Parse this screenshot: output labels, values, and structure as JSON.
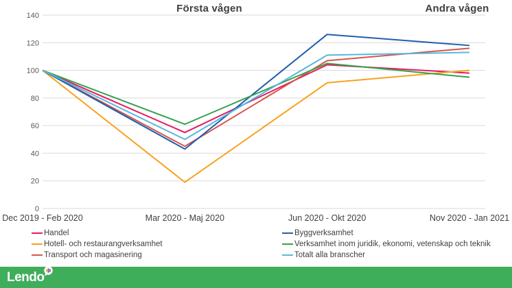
{
  "titles": {
    "left": "Första vågen",
    "right": "Andra vågen"
  },
  "chart_data": {
    "type": "line",
    "title": "",
    "categories": [
      "Dec 2019 - Feb 2020",
      "Mar 2020 - Maj 2020",
      "Jun 2020 - Okt 2020",
      "Nov 2020 - Jan 2021"
    ],
    "series": [
      {
        "name": "Handel",
        "color": "#E8195F",
        "values": [
          100,
          55,
          104,
          98
        ]
      },
      {
        "name": "Hotell- och restaurangverksamhet",
        "color": "#F9A11B",
        "values": [
          100,
          19,
          91,
          100
        ]
      },
      {
        "name": "Transport och magasinering",
        "color": "#D95349",
        "values": [
          100,
          45,
          107,
          116
        ]
      },
      {
        "name": "Byggverksamhet",
        "color": "#1F5FAD",
        "values": [
          100,
          43,
          126,
          118
        ]
      },
      {
        "name": "Verksamhet inom juridik, ekonomi, vetenskap och teknik",
        "color": "#33A14B",
        "values": [
          100,
          61,
          105,
          95
        ]
      },
      {
        "name": "Totalt alla branscher",
        "color": "#56B7E0",
        "values": [
          100,
          50,
          111,
          113
        ]
      }
    ],
    "ylim": [
      0,
      140
    ],
    "ytick_step": 20,
    "yticks": [
      "0",
      "20",
      "40",
      "60",
      "80",
      "100",
      "120",
      "140"
    ],
    "grid": true,
    "legend_position": "bottom, two columns"
  },
  "colors": {
    "grid": "#D9D9D9",
    "ytick_text": "#595959",
    "xtick_text": "#404040",
    "footer_bar": "#3FAE5B"
  },
  "footer": {
    "logo_text": "Lendo",
    "logo_icon": "speech-bubble-with-bars",
    "icon_bar_colors": [
      "#F9A11B",
      "#1F5FAD",
      "#E8195F"
    ]
  }
}
